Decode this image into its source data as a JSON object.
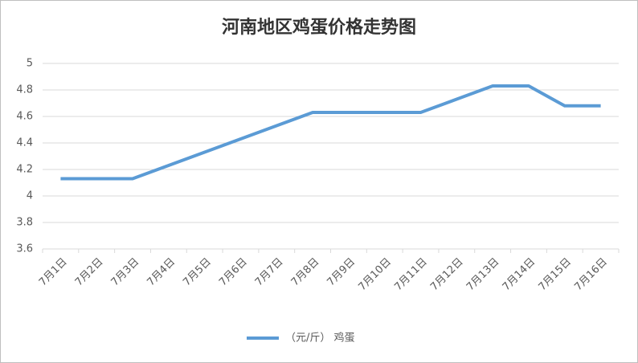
{
  "chart_data": {
    "type": "line",
    "title": "河南地区鸡蛋价格走势图",
    "categories": [
      "7月1日",
      "7月2日",
      "7月3日",
      "7月4日",
      "7月5日",
      "7月6日",
      "7月7日",
      "7月8日",
      "7月9日",
      "7月10日",
      "7月11日",
      "7月12日",
      "7月13日",
      "7月14日",
      "7月15日",
      "7月16日"
    ],
    "series": [
      {
        "name": "（元/斤） 鸡蛋",
        "color": "#5b9bd5",
        "values": [
          4.13,
          4.13,
          4.13,
          4.23,
          4.33,
          4.43,
          4.53,
          4.63,
          4.63,
          4.63,
          4.63,
          4.73,
          4.83,
          4.83,
          4.68,
          4.68
        ]
      }
    ],
    "ylim": [
      3.6,
      5
    ],
    "yticks": [
      3.6,
      3.8,
      4,
      4.2,
      4.4,
      4.6,
      4.8,
      5
    ],
    "grid": true,
    "legend": "bottom"
  }
}
